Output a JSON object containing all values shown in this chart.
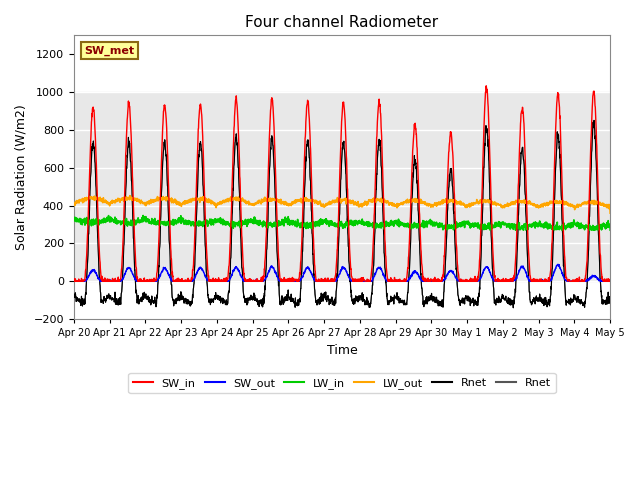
{
  "title": "Four channel Radiometer",
  "xlabel": "Time",
  "ylabel": "Solar Radiation (W/m2)",
  "ylim": [
    -200,
    1300
  ],
  "yticks": [
    -200,
    0,
    200,
    400,
    600,
    800,
    1000,
    1200
  ],
  "annotation_text": "SW_met",
  "annotation_color": "#8B0000",
  "annotation_bg": "#FFFF99",
  "annotation_border": "#8B6914",
  "bg_color": "#FFFFFF",
  "plot_bg": "#FFFFFF",
  "legend_entries": [
    "SW_in",
    "SW_out",
    "LW_in",
    "LW_out",
    "Rnet",
    "Rnet"
  ],
  "legend_colors": [
    "#FF0000",
    "#0000FF",
    "#00CC00",
    "#FFA500",
    "#000000",
    "#555555"
  ],
  "n_days": 15,
  "x_tick_labels": [
    "Apr 20",
    "Apr 21",
    "Apr 22",
    "Apr 23",
    "Apr 24",
    "Apr 25",
    "Apr 26",
    "Apr 27",
    "Apr 28",
    "Apr 29",
    "Apr 30",
    "May 1",
    "May 2",
    "May 3",
    "May 4",
    "May 5"
  ],
  "sw_in_peaks": [
    920,
    940,
    930,
    935,
    960,
    965,
    950,
    940,
    945,
    825,
    780,
    1025,
    920,
    990,
    1000
  ],
  "sw_out_peaks": [
    65,
    80,
    75,
    80,
    80,
    85,
    80,
    80,
    80,
    55,
    60,
    85,
    85,
    95,
    30
  ],
  "night_lw_in": 330,
  "night_lw_out": 395,
  "grid_color": "#D0D0D0",
  "span_color": "#E8E8E8"
}
